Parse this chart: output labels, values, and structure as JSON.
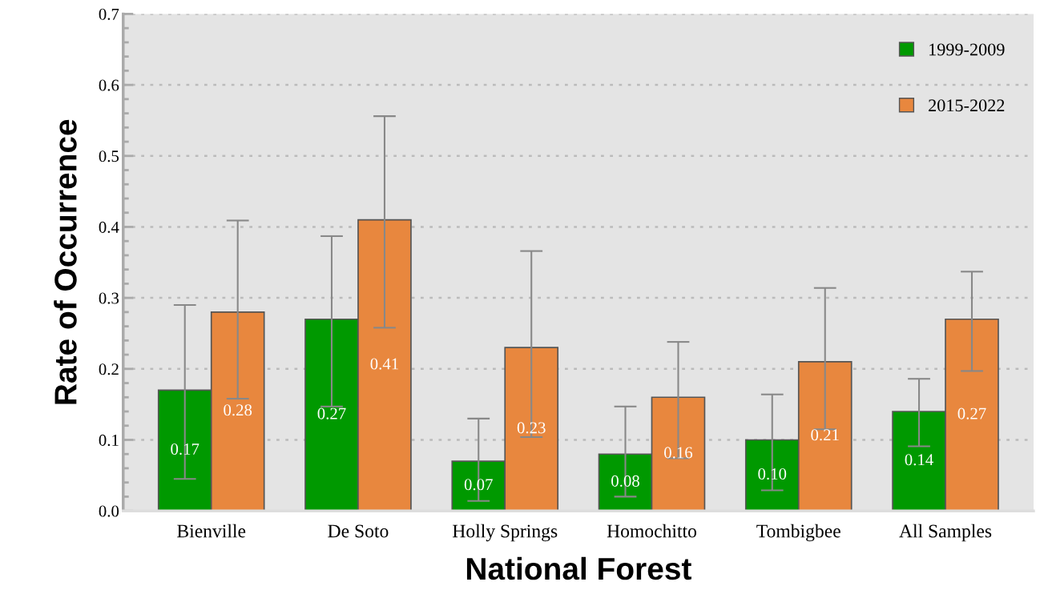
{
  "chart_data": {
    "type": "bar",
    "xlabel": "National Forest",
    "ylabel": "Rate of Occurrence",
    "categories": [
      "Bienville",
      "De Soto",
      "Holly Springs",
      "Homochitto",
      "Tombigbee",
      "All Samples"
    ],
    "series": [
      {
        "name": "1999-2009",
        "color": "#009900",
        "values": [
          0.17,
          0.27,
          0.07,
          0.08,
          0.1,
          0.14
        ],
        "value_labels": [
          "0.17",
          "0.27",
          "0.07",
          "0.08",
          "0.10",
          "0.14"
        ],
        "errors": [
          [
            0.045,
            0.29
          ],
          [
            0.147,
            0.387
          ],
          [
            0.014,
            0.13
          ],
          [
            0.02,
            0.147
          ],
          [
            0.029,
            0.164
          ],
          [
            0.091,
            0.186
          ]
        ]
      },
      {
        "name": "2015-2022",
        "color": "#e8873e",
        "values": [
          0.28,
          0.41,
          0.23,
          0.16,
          0.21,
          0.27
        ],
        "value_labels": [
          "0.28",
          "0.41",
          "0.23",
          "0.16",
          "0.21",
          "0.27"
        ],
        "errors": [
          [
            0.158,
            0.409
          ],
          [
            0.258,
            0.556
          ],
          [
            0.104,
            0.366
          ],
          [
            0.074,
            0.238
          ],
          [
            0.115,
            0.314
          ],
          [
            0.197,
            0.337
          ]
        ]
      }
    ],
    "ylim": [
      0,
      0.7
    ],
    "yticks": [
      {
        "value": 0,
        "label": "0.0"
      },
      0.1,
      0.2,
      0.3,
      0.4,
      0.5,
      0.6,
      0.7
    ],
    "grid": "y",
    "legend": "top right"
  }
}
